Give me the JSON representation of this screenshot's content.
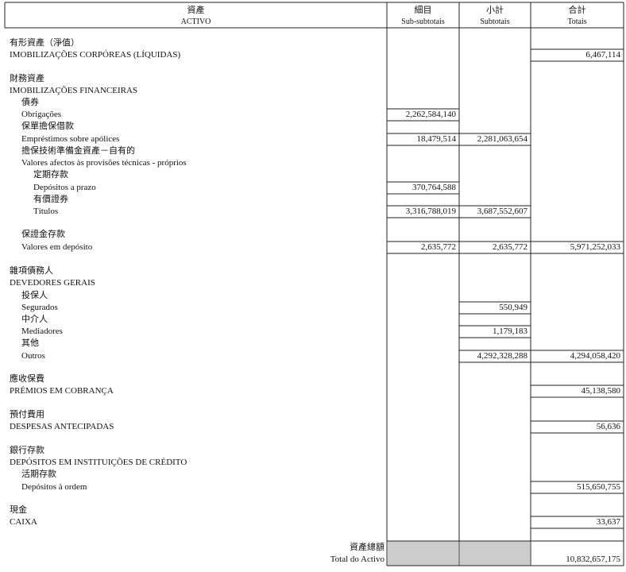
{
  "header": {
    "columns": [
      {
        "zh": "資產",
        "pt": "ACTIVO"
      },
      {
        "zh": "細目",
        "pt": "Sub-subtotais"
      },
      {
        "zh": "小計",
        "pt": "Subtotais"
      },
      {
        "zh": "合計",
        "pt": "Totais"
      }
    ]
  },
  "rows": [
    {
      "label": "有形資產（淨值）"
    },
    {
      "label": "IMOBILIZAÇÕES CORPÓREAS (LÍQUIDAS)",
      "total": "6,467,114"
    },
    {
      "label": "財務資產"
    },
    {
      "label": "IMOBILIZAÇÕES FINANCEIRAS"
    },
    {
      "label": "債券"
    },
    {
      "label": "Obrigações",
      "sub_subtotal": "2,262,584,140"
    },
    {
      "label": "保單擔保借款"
    },
    {
      "label": "Empréstimos sobre apólices",
      "sub_subtotal": "18,479,514",
      "subtotal": "2,281,063,654"
    },
    {
      "label": "擔保技術準備金資產－自有的"
    },
    {
      "label": "Valores afectos às provisões técnicas - próprios"
    },
    {
      "label": "定期存款"
    },
    {
      "label": "Depósitos a prazo",
      "sub_subtotal": "370,764,588"
    },
    {
      "label": "有價證券"
    },
    {
      "label": "Títulos",
      "sub_subtotal": "3,316,788,019",
      "subtotal": "3,687,552,607"
    },
    {
      "label": "保證金存款"
    },
    {
      "label": "Valores em depósito",
      "sub_subtotal": "2,635,772",
      "subtotal": "2,635,772",
      "total": "5,971,252,033"
    },
    {
      "label": "雜項債務人"
    },
    {
      "label": "DEVEDORES GERAIS"
    },
    {
      "label": "投保人"
    },
    {
      "label": "Segurados",
      "subtotal": "550,949"
    },
    {
      "label": "中介人"
    },
    {
      "label": "Mediadores",
      "subtotal": "1,179,183"
    },
    {
      "label": "其他"
    },
    {
      "label": "Outros",
      "subtotal": "4,292,328,288",
      "total": "4,294,058,420"
    },
    {
      "label": "應收保費"
    },
    {
      "label": "PRÉMIOS EM COBRANÇA",
      "total": "45,138,580"
    },
    {
      "label": "預付費用"
    },
    {
      "label": "DESPESAS ANTECIPADAS",
      "total": "56,636"
    },
    {
      "label": "銀行存款"
    },
    {
      "label": "DEPÓSITOS EM INSTITUIÇÕES DE CRÉDITO"
    },
    {
      "label": "活期存款"
    },
    {
      "label": "Depósitos à ordem",
      "total": "515,650,755"
    },
    {
      "label": "現金"
    },
    {
      "label": "CAIXA",
      "total": "33,637"
    }
  ],
  "footer": {
    "label_zh": "資產總額",
    "label_pt": "Total do Activo",
    "total": "10,832,657,175"
  }
}
